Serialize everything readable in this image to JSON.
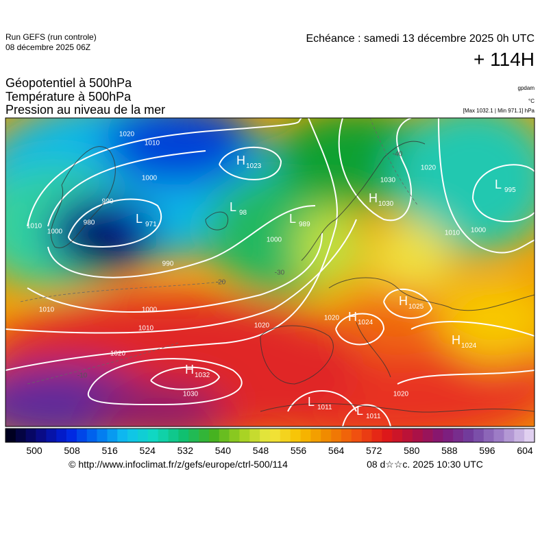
{
  "header": {
    "run": "Run GEFS (run controle)",
    "run_date": "08 décembre 2025 06Z",
    "valid": "Echéance : samedi 13 décembre 2025 0h UTC",
    "lead": "+ 114H"
  },
  "fields": [
    "Géopotentiel à 500hPa",
    "Température à 500hPa",
    "Pression au niveau de la mer"
  ],
  "units": [
    "gpdam",
    "°C",
    "[Max 1032.1 | Min 971.1] hPa"
  ],
  "pressure_centers": [
    {
      "type": "H",
      "value": "1023"
    },
    {
      "type": "L",
      "value": "98"
    },
    {
      "type": "L",
      "value": "989"
    },
    {
      "type": "L",
      "value": "971"
    },
    {
      "type": "H",
      "value": "1030"
    },
    {
      "type": "L",
      "value": "995"
    },
    {
      "type": "H",
      "value": "1025"
    },
    {
      "type": "H",
      "value": "1024"
    },
    {
      "type": "H",
      "value": "1024"
    },
    {
      "type": "H",
      "value": "1032"
    },
    {
      "type": "L",
      "value": "1011"
    },
    {
      "type": "L",
      "value": "1011"
    }
  ],
  "contour_labels": [
    "1020",
    "1010",
    "1000",
    "990",
    "980",
    "1010",
    "1000",
    "990",
    "1000",
    "1010",
    "1020",
    "1030",
    "1020",
    "1000",
    "1010",
    "1020",
    "1030",
    "1020",
    "1020",
    "1010",
    "1000",
    "-20",
    "-30",
    "-10",
    "-40"
  ],
  "colorbar": {
    "ticks": [
      500,
      508,
      516,
      524,
      532,
      540,
      548,
      556,
      564,
      572,
      580,
      588,
      596,
      604
    ]
  },
  "footer": {
    "url": "© http://www.infoclimat.fr/z/gefs/europe/ctrl-500/114",
    "date": "08 d☆☆c. 2025 10:30 UTC"
  }
}
